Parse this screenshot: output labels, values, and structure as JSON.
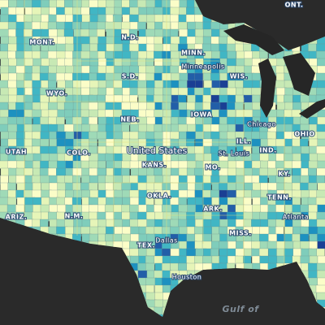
{
  "labels": [
    "ONT.",
    "MONT.",
    "N.D.",
    "MINN.",
    "Minneapolis",
    "WIS.",
    "WYO.",
    "S.D.",
    "NEB.",
    "IOWA",
    "Chicago",
    "UTAH",
    "COLO.",
    "United States",
    "ILL.",
    "St. Louis",
    "IND.",
    "OHIO",
    "KANS.",
    "MO.",
    "KY.",
    "OKLA.",
    "ARK.",
    "TENN.",
    "ARIZ.",
    "N.M.",
    "Dallas",
    "TEX.",
    "MISS.",
    "Atlanta",
    "Houston",
    "Gulf of"
  ]
}
